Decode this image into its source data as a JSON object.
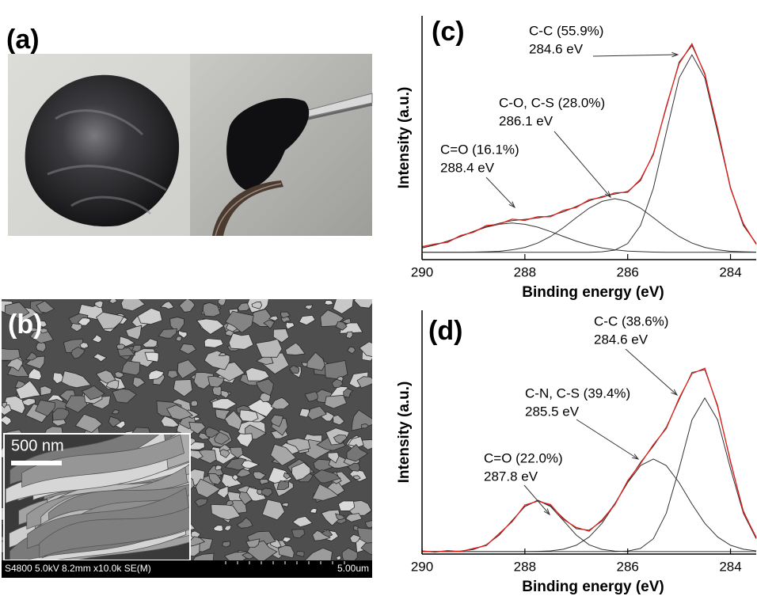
{
  "panels": {
    "a": {
      "label": "(a)"
    },
    "b": {
      "label": "(b)",
      "scale_bar": "500 nm",
      "footer_left": "S4800 5.0kV 8.2mm x10.0k SE(M)",
      "footer_right": "5.00um"
    }
  },
  "chart_data": [
    {
      "type": "line",
      "panel_label": "(c)",
      "x_label": "Binding energy (eV)",
      "y_label": "Intensity (a.u.)",
      "xlim": [
        290,
        283.5
      ],
      "ylim": [
        0,
        100
      ],
      "xticks": [
        290,
        288,
        286,
        284
      ],
      "x": [
        290,
        289.75,
        289.5,
        289.25,
        289,
        288.75,
        288.5,
        288.25,
        288,
        287.75,
        287.5,
        287.25,
        287,
        286.75,
        286.5,
        286.25,
        286,
        285.75,
        285.5,
        285.25,
        285,
        284.75,
        284.5,
        284.25,
        284,
        283.75,
        283.5
      ],
      "series": [
        {
          "color": "#333333",
          "values": [
            3.0,
            3.0,
            3.0,
            3.0,
            3.0,
            3.0,
            3.0,
            3.0,
            3.0,
            3.0,
            3.0,
            3.0,
            3.0,
            3.0,
            3.2,
            3.9,
            6.6,
            14.0,
            29.3,
            52.1,
            74.5,
            84,
            74.5,
            52.1,
            29.3,
            14.0,
            6.6
          ]
        },
        {
          "color": "#333333",
          "values": [
            3.0,
            3.0,
            3.0,
            3.0,
            3.1,
            3.2,
            3.4,
            4.0,
            5.0,
            6.8,
            9.5,
            13.1,
            17.2,
            21.1,
            23.9,
            25,
            23.9,
            21.1,
            17.2,
            13.1,
            9.5,
            6.8,
            5.0,
            4.0,
            3.4,
            3.2,
            3.1
          ]
        },
        {
          "color": "#333333",
          "values": [
            4.8,
            6.0,
            7.6,
            9.5,
            11.5,
            13.3,
            14.5,
            15,
            14.5,
            13.3,
            11.5,
            9.5,
            7.6,
            6.0,
            4.8,
            4.0,
            3.5,
            3.3,
            3.1,
            3.0,
            3.0,
            3.0,
            3.0,
            3.0,
            3.0,
            3.0,
            3.0
          ]
        },
        {
          "color": "#333333",
          "values": [
            4.8,
            6.0,
            7.6,
            9.5,
            11.6,
            13.5,
            14.9,
            16.0,
            16.5,
            17.1,
            18.0,
            19.6,
            21.8,
            24.1,
            25.9,
            26.9,
            28.0,
            32.4,
            43.6,
            62.2,
            81.0,
            87.8,
            76.5,
            53.1,
            29.7,
            14.2,
            6.7
          ]
        },
        {
          "color": "#e0201b",
          "values": [
            5.3,
            6.4,
            7.1,
            9.9,
            11.2,
            14.0,
            14.5,
            16.6,
            16.1,
            17.6,
            17.6,
            20.2,
            21.4,
            24.6,
            25.5,
            27.4,
            27.6,
            33.0,
            43.1,
            62.8,
            80.4,
            88.5,
            76.0,
            53.7,
            29.2,
            14.8,
            6.3
          ]
        }
      ],
      "annotations": [
        {
          "text": "C-C (55.9%)",
          "subtext": "284.6 eV"
        },
        {
          "text": "C-O, C-S (28.0%)",
          "subtext": "286.1 eV"
        },
        {
          "text": "C=O (16.1%)",
          "subtext": "288.4 eV"
        }
      ]
    },
    {
      "type": "line",
      "panel_label": "(d)",
      "x_label": "Binding energy (eV)",
      "y_label": "Intensity (a.u.)",
      "xlim": [
        290,
        283.5
      ],
      "ylim": [
        0,
        100
      ],
      "xticks": [
        290,
        288,
        286,
        284
      ],
      "x": [
        290,
        289.75,
        289.5,
        289.25,
        289,
        288.75,
        288.5,
        288.25,
        288,
        287.75,
        287.5,
        287.25,
        287,
        286.75,
        286.5,
        286.25,
        286,
        285.75,
        285.5,
        285.25,
        285,
        284.75,
        284.5,
        284.25,
        284,
        283.75,
        283.5
      ],
      "series": [
        {
          "color": "#333333",
          "values": [
            1.0,
            1.0,
            1.0,
            1.0,
            1.0,
            1.0,
            1.0,
            1.0,
            1.0,
            1.0,
            1.0,
            1.0,
            1.0,
            1.0,
            1.0,
            1.0,
            1.2,
            2.3,
            6.3,
            16.7,
            35.0,
            55.0,
            64,
            55.0,
            35.0,
            16.7,
            6.3
          ]
        },
        {
          "color": "#333333",
          "values": [
            1.0,
            1.0,
            1.0,
            1.0,
            1.0,
            1.0,
            1.0,
            1.0,
            1.0,
            1.1,
            1.3,
            2.0,
            3.6,
            7.0,
            12.6,
            20.5,
            29.3,
            36.3,
            39,
            36.3,
            29.3,
            20.5,
            12.6,
            7.0,
            3.6,
            2.0,
            1.3
          ]
        },
        {
          "color": "#333333",
          "values": [
            1.0,
            1.0,
            1.0,
            1.2,
            1.9,
            3.8,
            7.8,
            13.7,
            19.5,
            22,
            19.5,
            13.7,
            7.8,
            3.8,
            1.9,
            1.2,
            1.0,
            1.0,
            1.0,
            1.0,
            1.0,
            1.0,
            1.0,
            1.0,
            1.0,
            1.0,
            1.0
          ]
        },
        {
          "color": "#333333",
          "values": [
            1.0,
            1.0,
            1.0,
            1.2,
            1.9,
            3.8,
            7.8,
            13.7,
            19.5,
            22.1,
            19.8,
            14.7,
            10.4,
            9.8,
            13.5,
            20.7,
            29.5,
            37.6,
            44.3,
            52.0,
            63.3,
            74.5,
            75.6,
            61.0,
            37.6,
            17.7,
            6.6
          ]
        },
        {
          "color": "#e0201b",
          "values": [
            1.3,
            0.8,
            1.4,
            1.0,
            2.3,
            3.5,
            8.4,
            13.2,
            20.1,
            21.7,
            20.3,
            14.2,
            10.9,
            9.4,
            14.0,
            20.2,
            30.1,
            37.1,
            44.9,
            51.5,
            63.9,
            74.0,
            76.2,
            60.4,
            38.1,
            17.2,
            6.9
          ]
        }
      ],
      "annotations": [
        {
          "text": "C-C (38.6%)",
          "subtext": "284.6 eV"
        },
        {
          "text": "C-N, C-S (39.4%)",
          "subtext": "285.5 eV"
        },
        {
          "text": "C=O (22.0%)",
          "subtext": "287.8 eV"
        }
      ]
    }
  ]
}
